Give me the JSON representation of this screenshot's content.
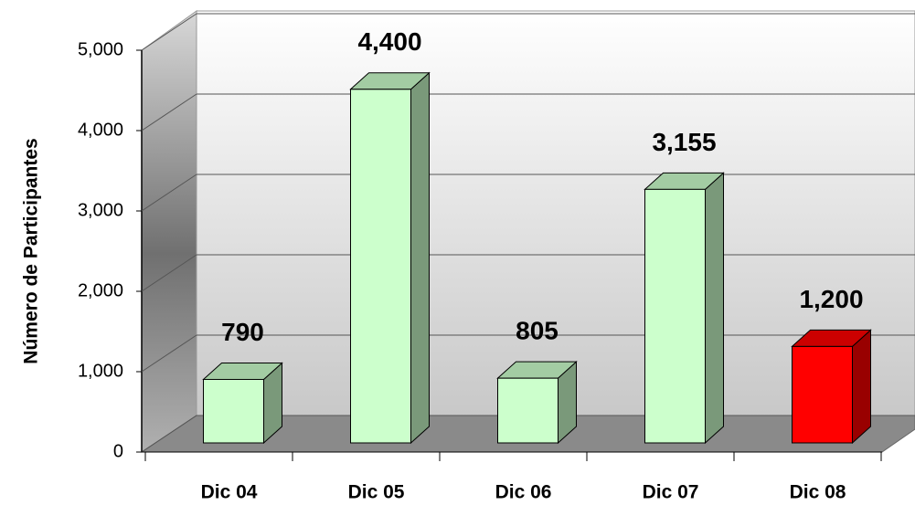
{
  "chart_data": {
    "type": "bar3d",
    "y_label": "Número de Participantes",
    "categories": [
      "Dic 04",
      "Dic 05",
      "Dic 06",
      "Dic 07",
      "Dic 08"
    ],
    "values": [
      790,
      4400,
      805,
      3155,
      1200
    ],
    "value_labels": [
      "790",
      "4,400",
      "805",
      "3,155",
      "1,200"
    ],
    "colors": [
      "#ccffcc",
      "#ccffcc",
      "#ccffcc",
      "#ccffcc",
      "#ff0000"
    ],
    "ylim": [
      0,
      5000
    ],
    "yticks": [
      0,
      {
        "value": 1000,
        "label": "1,000"
      },
      {
        "value": 2000,
        "label": "2,000"
      },
      {
        "value": 3000,
        "label": "3,000"
      },
      {
        "value": 4000,
        "label": "4,000"
      },
      {
        "value": 5000,
        "label": "5,000"
      }
    ],
    "grid": true
  }
}
